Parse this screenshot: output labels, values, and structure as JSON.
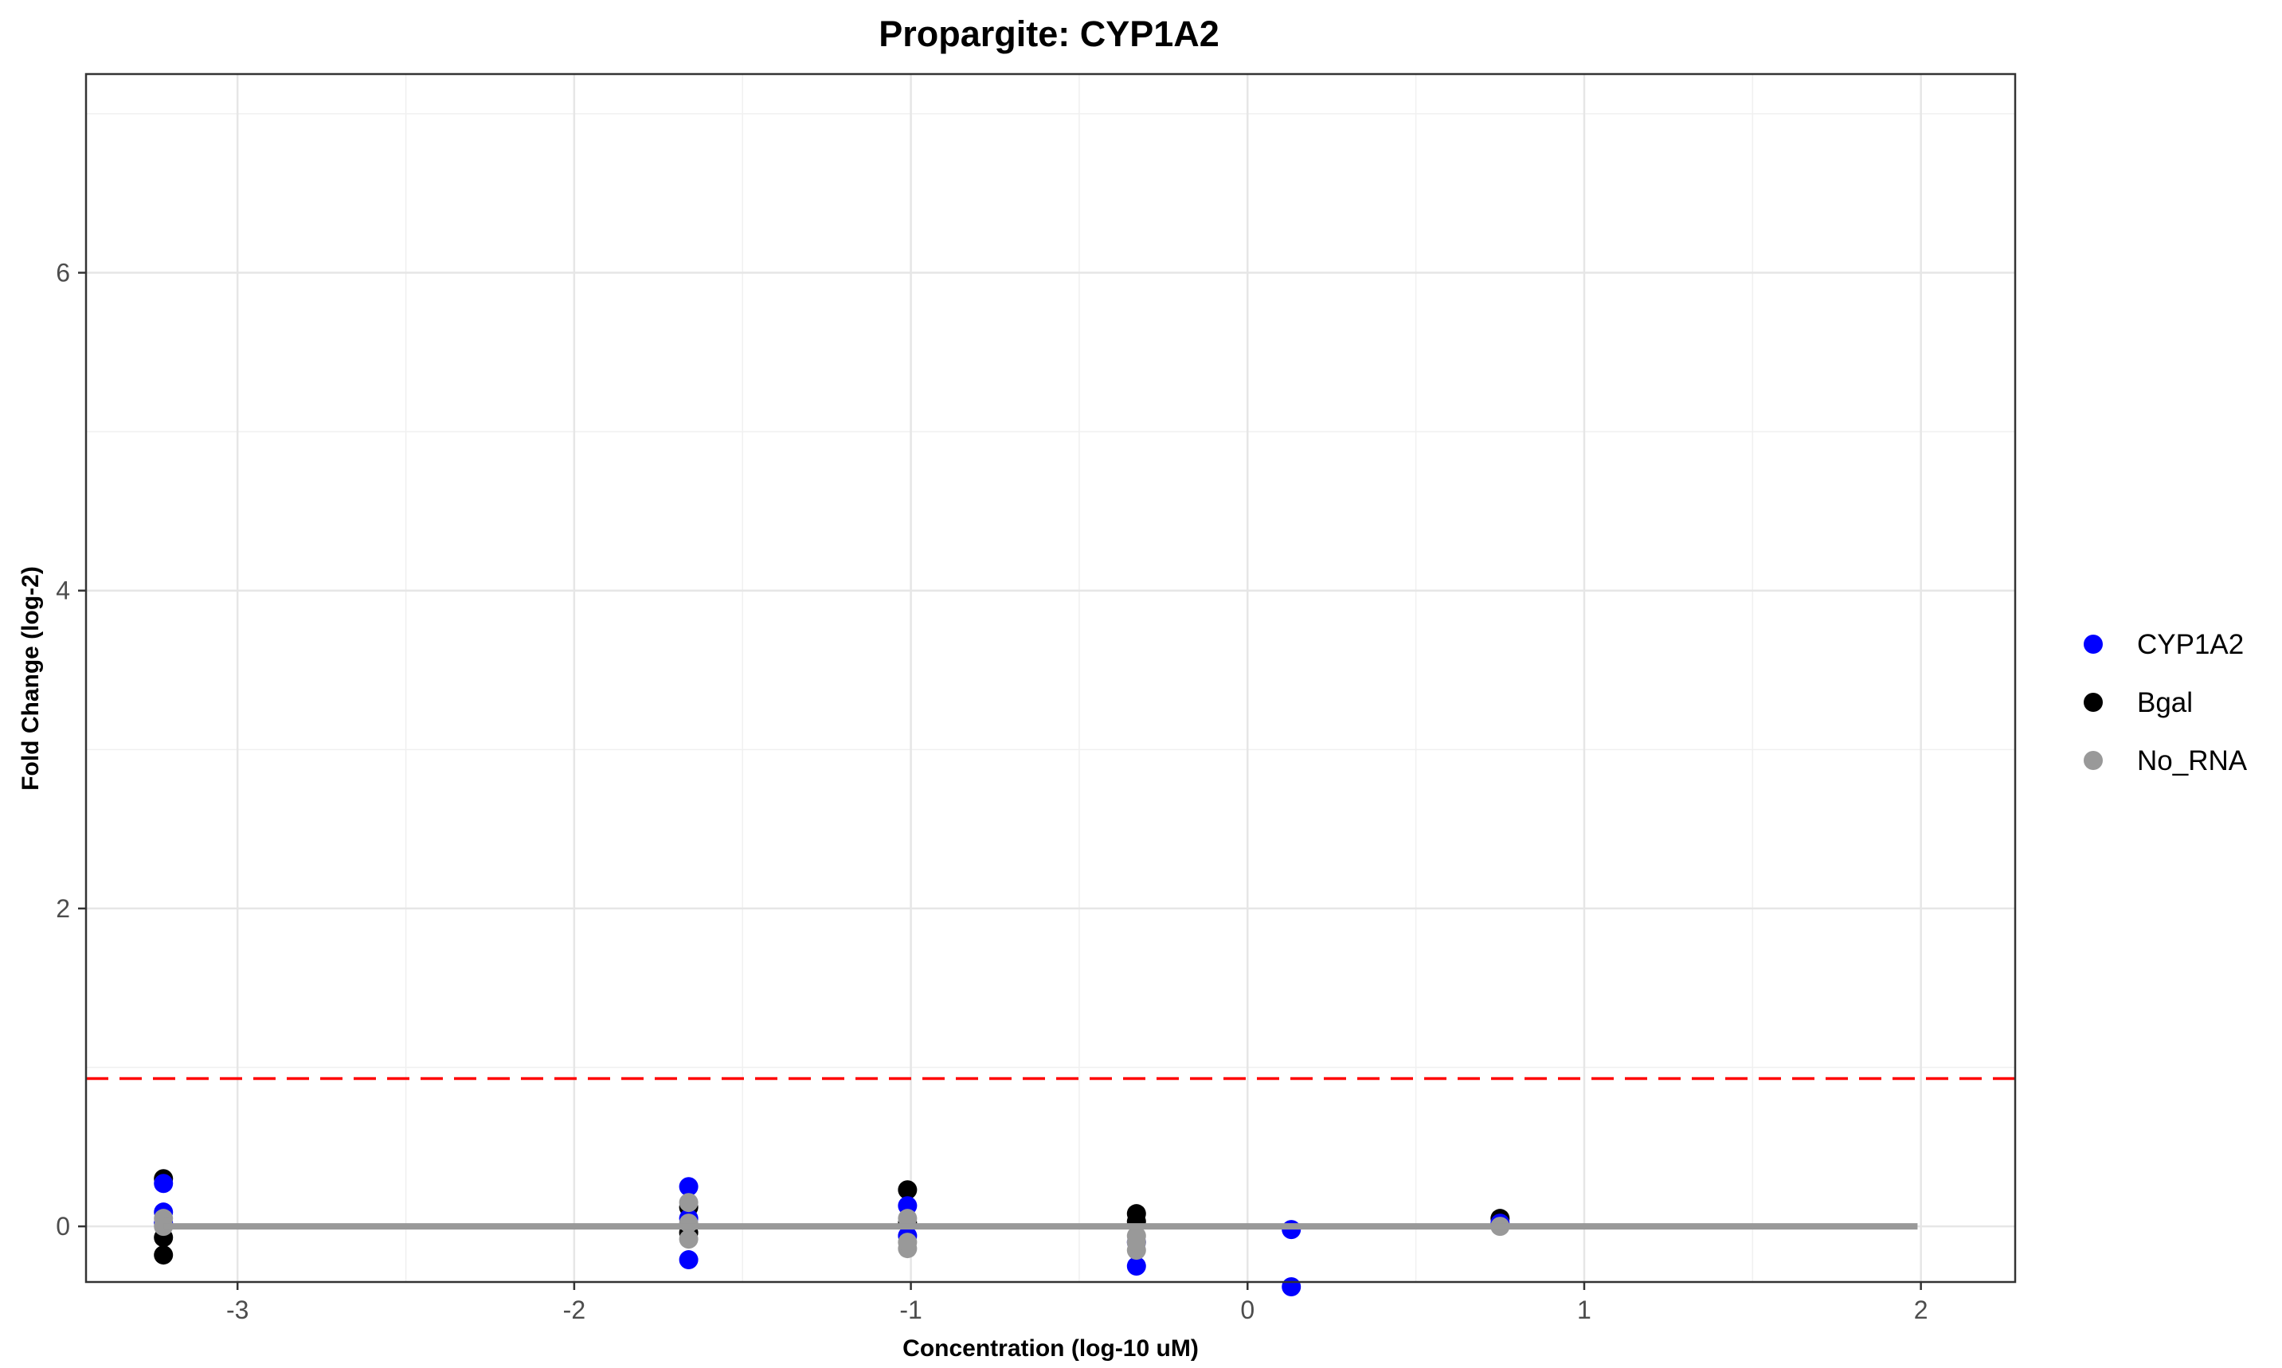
{
  "chart_data": {
    "type": "scatter",
    "title": "Propargite: CYP1A2",
    "xlabel": "Concentration (log-10 uM)",
    "ylabel": "Fold Change (log-2)",
    "xlim": [
      -3.45,
      2.28
    ],
    "ylim": [
      -0.35,
      7.25
    ],
    "x_ticks": [
      -3,
      -2,
      -1,
      0,
      1,
      2
    ],
    "y_ticks": [
      0,
      2,
      4,
      6
    ],
    "x_tick_labels": [
      "-3",
      "-2",
      "-1",
      "0",
      "1",
      "2"
    ],
    "y_tick_labels": [
      "0",
      "2",
      "4",
      "6"
    ],
    "grid": true,
    "legend_position": "right",
    "threshold": {
      "y": 0.93,
      "color": "#ff0000",
      "style": "dashed"
    },
    "baseline": {
      "x_start": -3.22,
      "x_end": 1.99,
      "y": 0,
      "color": "#999999"
    },
    "series": [
      {
        "name": "CYP1A2",
        "color": "#0000ff",
        "points": [
          [
            -3.22,
            0.27
          ],
          [
            -3.22,
            0.09
          ],
          [
            -3.22,
            0.02
          ],
          [
            -1.66,
            0.25
          ],
          [
            -1.66,
            -0.21
          ],
          [
            -1.66,
            0.05
          ],
          [
            -1.01,
            0.13
          ],
          [
            -1.01,
            -0.06
          ],
          [
            -0.33,
            -0.25
          ],
          [
            -0.33,
            -0.1
          ],
          [
            0.13,
            -0.02
          ],
          [
            0.13,
            -0.38
          ],
          [
            0.75,
            0.02
          ]
        ]
      },
      {
        "name": "Bgal",
        "color": "#000000",
        "points": [
          [
            -3.22,
            0.3
          ],
          [
            -3.22,
            -0.07
          ],
          [
            -3.22,
            -0.18
          ],
          [
            -1.66,
            0.12
          ],
          [
            -1.66,
            -0.04
          ],
          [
            -1.66,
            0.0
          ],
          [
            -1.01,
            0.23
          ],
          [
            -1.01,
            0.02
          ],
          [
            -0.33,
            0.08
          ],
          [
            -0.33,
            0.03
          ],
          [
            0.75,
            0.05
          ]
        ]
      },
      {
        "name": "No_RNA",
        "color": "#999999",
        "points": [
          [
            -3.22,
            0.05
          ],
          [
            -3.22,
            0.0
          ],
          [
            -1.66,
            0.15
          ],
          [
            -1.66,
            -0.08
          ],
          [
            -1.66,
            0.02
          ],
          [
            -1.01,
            -0.14
          ],
          [
            -1.01,
            0.05
          ],
          [
            -1.01,
            -0.1
          ],
          [
            -0.33,
            -0.06
          ],
          [
            -0.33,
            -0.15
          ],
          [
            -0.33,
            -0.1
          ],
          [
            0.75,
            0.0
          ]
        ]
      }
    ]
  }
}
